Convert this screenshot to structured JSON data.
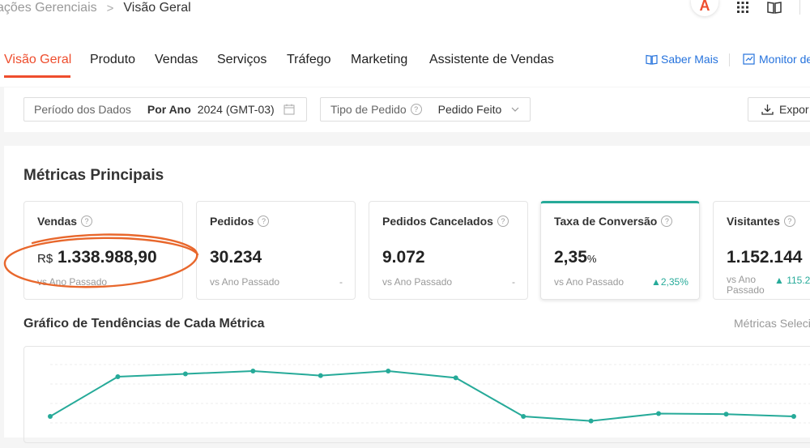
{
  "breadcrumb": {
    "parent": "ações Gerenciais",
    "separator": ">",
    "current": "Visão Geral"
  },
  "header_icons": {
    "brand_letter": "A",
    "icons": [
      "apps-grid-icon",
      "book-icon"
    ]
  },
  "tabs": [
    {
      "label": "Visão Geral",
      "active": true
    },
    {
      "label": "Produto"
    },
    {
      "label": "Vendas"
    },
    {
      "label": "Serviços"
    },
    {
      "label": "Tráfego"
    },
    {
      "label": "Marketing"
    },
    {
      "label": "Assistente de Vendas"
    }
  ],
  "links": {
    "saber_mais": "Saber Mais",
    "monitor": "Monitor de"
  },
  "filters": {
    "periodo_label": "Período dos Dados",
    "periodo_mode": "Por Ano",
    "periodo_value": "2024 (GMT-03)",
    "tipo_label": "Tipo de Pedido",
    "tipo_value": "Pedido Feito",
    "export_label": "Expor"
  },
  "metrics_title": "Métricas Principais",
  "metrics": [
    {
      "title": "Vendas",
      "currency": "R$",
      "value": "1.338.988,90",
      "sub": "vs Ano Passado",
      "delta": ""
    },
    {
      "title": "Pedidos",
      "value": "30.234",
      "sub": "vs Ano Passado",
      "delta": "-"
    },
    {
      "title": "Pedidos Cancelados",
      "value": "9.072",
      "sub": "vs Ano Passado",
      "delta": "-"
    },
    {
      "title": "Taxa de Conversão",
      "value": "2,35",
      "suffix": "%",
      "sub": "vs Ano Passado",
      "delta": "▲2,35%",
      "selected": true
    },
    {
      "title": "Visitantes",
      "value": "1.152.144",
      "sub_line1": "vs Ano",
      "sub_line2": "Passado",
      "delta": "▲ 115.2"
    }
  ],
  "trend": {
    "title": "Gráfico de Tendências de Cada Métrica",
    "right_label": "Métricas Seleci"
  },
  "chart_data": {
    "type": "line",
    "series": [
      {
        "values": [
          0.2,
          0.9,
          0.95,
          1.0,
          0.92,
          1.0,
          0.88,
          0.2,
          0.12,
          0.25,
          0.24,
          0.2
        ]
      }
    ],
    "x": [
      1,
      2,
      3,
      4,
      5,
      6,
      7,
      8,
      9,
      10,
      11,
      12
    ],
    "grid": true,
    "color": "#26aa99"
  },
  "colors": {
    "accent": "#ee4d2d",
    "link": "#2673dd",
    "teal": "#26aa99",
    "annotation": "#e8672c"
  }
}
